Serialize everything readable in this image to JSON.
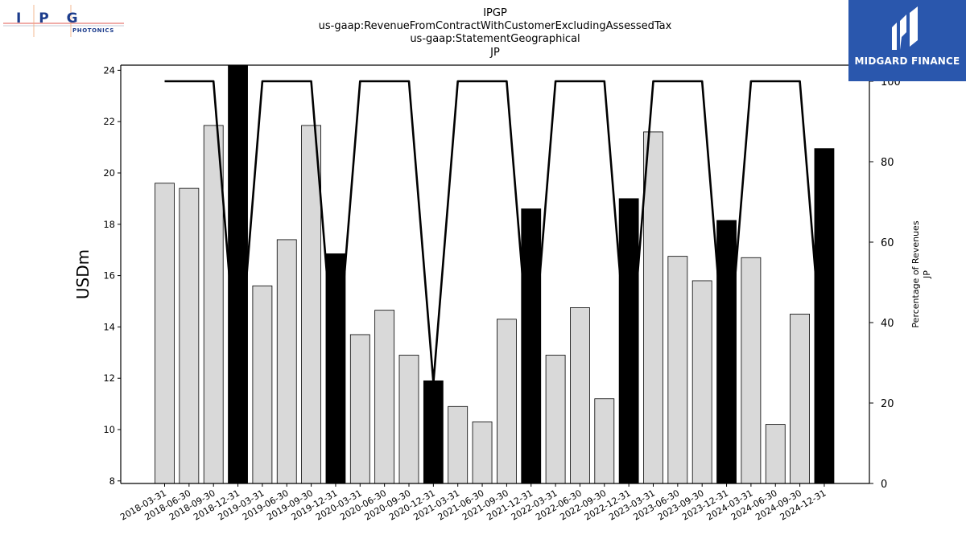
{
  "logos": {
    "ipg": {
      "letters": "I P G",
      "subtitle": "PHOTONICS",
      "color": "#1c3c8c"
    },
    "brand": {
      "name": "MIDGARD FINANCE",
      "color": "#2a57ad"
    }
  },
  "chart_data": {
    "type": "bar",
    "title": [
      "IPGP",
      "us-gaap:RevenueFromContractWithCustomerExcludingAssessedTax",
      "us-gaap:StatementGeographical",
      "JP"
    ],
    "ylabel": "USDm",
    "ylabel_right": [
      "Percentage of Revenues",
      "JP"
    ],
    "ylim": [
      7.9,
      24.2
    ],
    "ylim_right": [
      0,
      104
    ],
    "yticks": [
      8,
      10,
      12,
      14,
      16,
      18,
      20,
      22,
      24
    ],
    "yticks_right": [
      0,
      20,
      40,
      60,
      80,
      100
    ],
    "categories": [
      "2018-03-31",
      "2018-06-30",
      "2018-09-30",
      "2018-12-31",
      "2019-03-31",
      "2019-06-30",
      "2019-09-30",
      "2019-12-31",
      "2020-03-31",
      "2020-06-30",
      "2020-09-30",
      "2020-12-31",
      "2021-03-31",
      "2021-06-30",
      "2021-09-30",
      "2021-12-31",
      "2022-03-31",
      "2022-06-30",
      "2022-09-30",
      "2022-12-31",
      "2023-03-31",
      "2023-06-30",
      "2023-09-30",
      "2023-12-31",
      "2024-03-31",
      "2024-06-30",
      "2024-09-30",
      "2024-12-31"
    ],
    "series": [
      {
        "type": "bar",
        "values": [
          19.6,
          19.4,
          21.85,
          24.2,
          15.6,
          17.4,
          21.85,
          16.85,
          13.7,
          14.65,
          12.9,
          11.9,
          10.9,
          10.3,
          14.3,
          18.6,
          12.9,
          14.75,
          11.2,
          19.0,
          21.6,
          16.75,
          15.8,
          18.15,
          16.7,
          10.2,
          14.5,
          20.95
        ],
        "highlight": [
          false,
          false,
          false,
          true,
          false,
          false,
          false,
          true,
          false,
          false,
          false,
          true,
          false,
          false,
          false,
          true,
          false,
          false,
          false,
          true,
          false,
          false,
          false,
          true,
          false,
          false,
          false,
          true
        ],
        "color": "#d9d9d9",
        "highlight_color": "#000000"
      },
      {
        "type": "line",
        "axis": "right",
        "values": [
          100,
          100,
          100,
          25,
          100,
          100,
          100,
          25,
          100,
          100,
          100,
          25,
          100,
          100,
          100,
          25,
          100,
          100,
          100,
          25,
          100,
          100,
          100,
          25,
          100,
          100,
          100,
          25
        ],
        "color": "#000000"
      }
    ],
    "grid": false,
    "legend": "none"
  }
}
